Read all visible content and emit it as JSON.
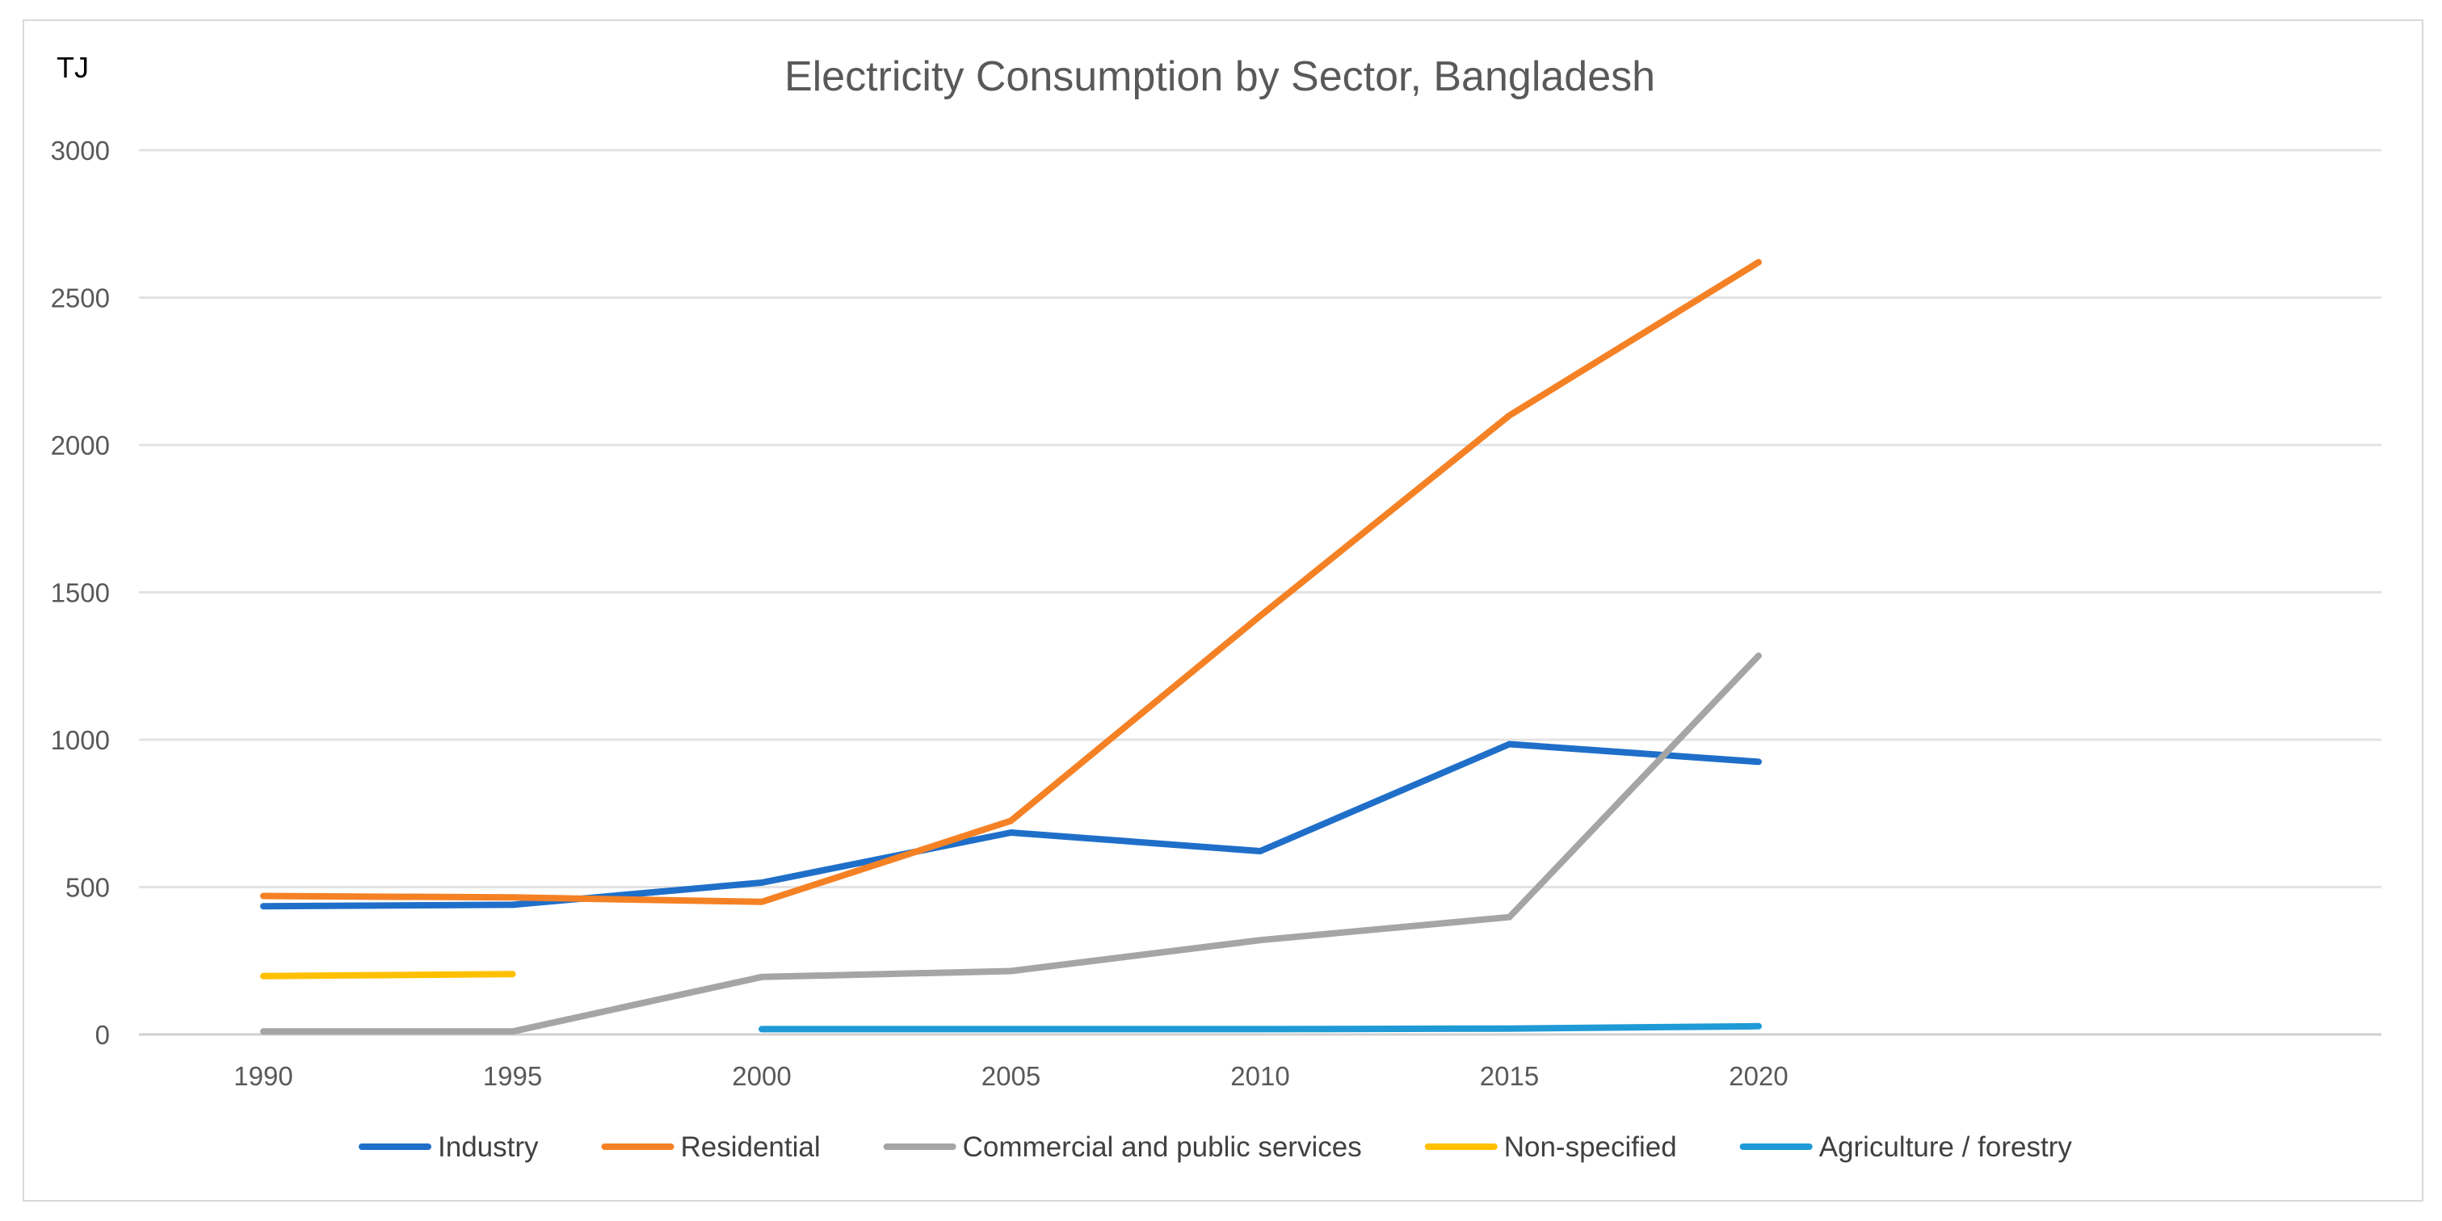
{
  "chart_data": {
    "type": "line",
    "title": "Electricity Consumption by Sector, Bangladesh",
    "ylabel": "TJ",
    "xlabel": "",
    "x": [
      "1990",
      "1995",
      "2000",
      "2005",
      "2010",
      "2015",
      "2020"
    ],
    "ylim": [
      0,
      3000
    ],
    "yticks": [
      "0",
      "500",
      "1000",
      "1500",
      "2000",
      "2500",
      "3000"
    ],
    "grid": true,
    "legend_position": "bottom",
    "series": [
      {
        "name": "Industry",
        "color": "#1f6fc9",
        "values": [
          435,
          440,
          515,
          685,
          622,
          985,
          925
        ]
      },
      {
        "name": "Residential",
        "color": "#f58125",
        "values": [
          470,
          465,
          450,
          725,
          1420,
          2100,
          2620
        ]
      },
      {
        "name": "Commercial and public services",
        "color": "#a5a5a5",
        "values": [
          10,
          10,
          195,
          215,
          320,
          398,
          1285
        ]
      },
      {
        "name": "Non-specified",
        "color": "#ffc000",
        "values": [
          198,
          205,
          null,
          null,
          null,
          null,
          null
        ]
      },
      {
        "name": "Agriculture / forestry",
        "color": "#1e9ad6",
        "values": [
          null,
          null,
          18,
          18,
          18,
          20,
          28
        ]
      }
    ]
  }
}
